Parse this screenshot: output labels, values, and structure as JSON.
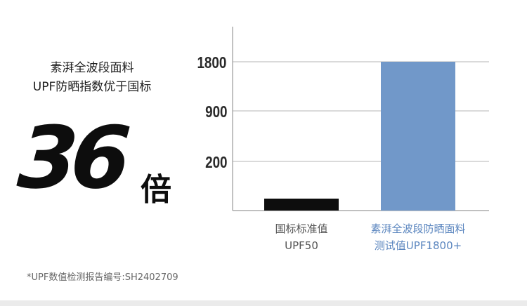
{
  "headline": {
    "line1": "素湃全波段面料",
    "line2": "UPF防晒指数优于国标"
  },
  "big_stat": {
    "number": "36",
    "unit": "倍"
  },
  "footnote": "*UPF数值检测报告编号:SH2402709",
  "colors": {
    "standard_bar": "#0d0d0d",
    "product_bar": "#7198c9",
    "standard_label": "#555555",
    "product_label": "#5b86bf"
  },
  "chart_data": {
    "type": "bar",
    "scale": "nonlinear (ticks 200, 900, 1800 evenly spaced)",
    "y_ticks": [
      "1800",
      "900",
      "200"
    ],
    "y_tick_values": [
      1800,
      900,
      200
    ],
    "categories": [
      {
        "line1": "国标标准值",
        "line2": "UPF50"
      },
      {
        "line1": "素湃全波段防晒面料",
        "line2": "测试值UPF1800+"
      }
    ],
    "values": [
      50,
      1800
    ],
    "grid": true,
    "legend": "none"
  }
}
